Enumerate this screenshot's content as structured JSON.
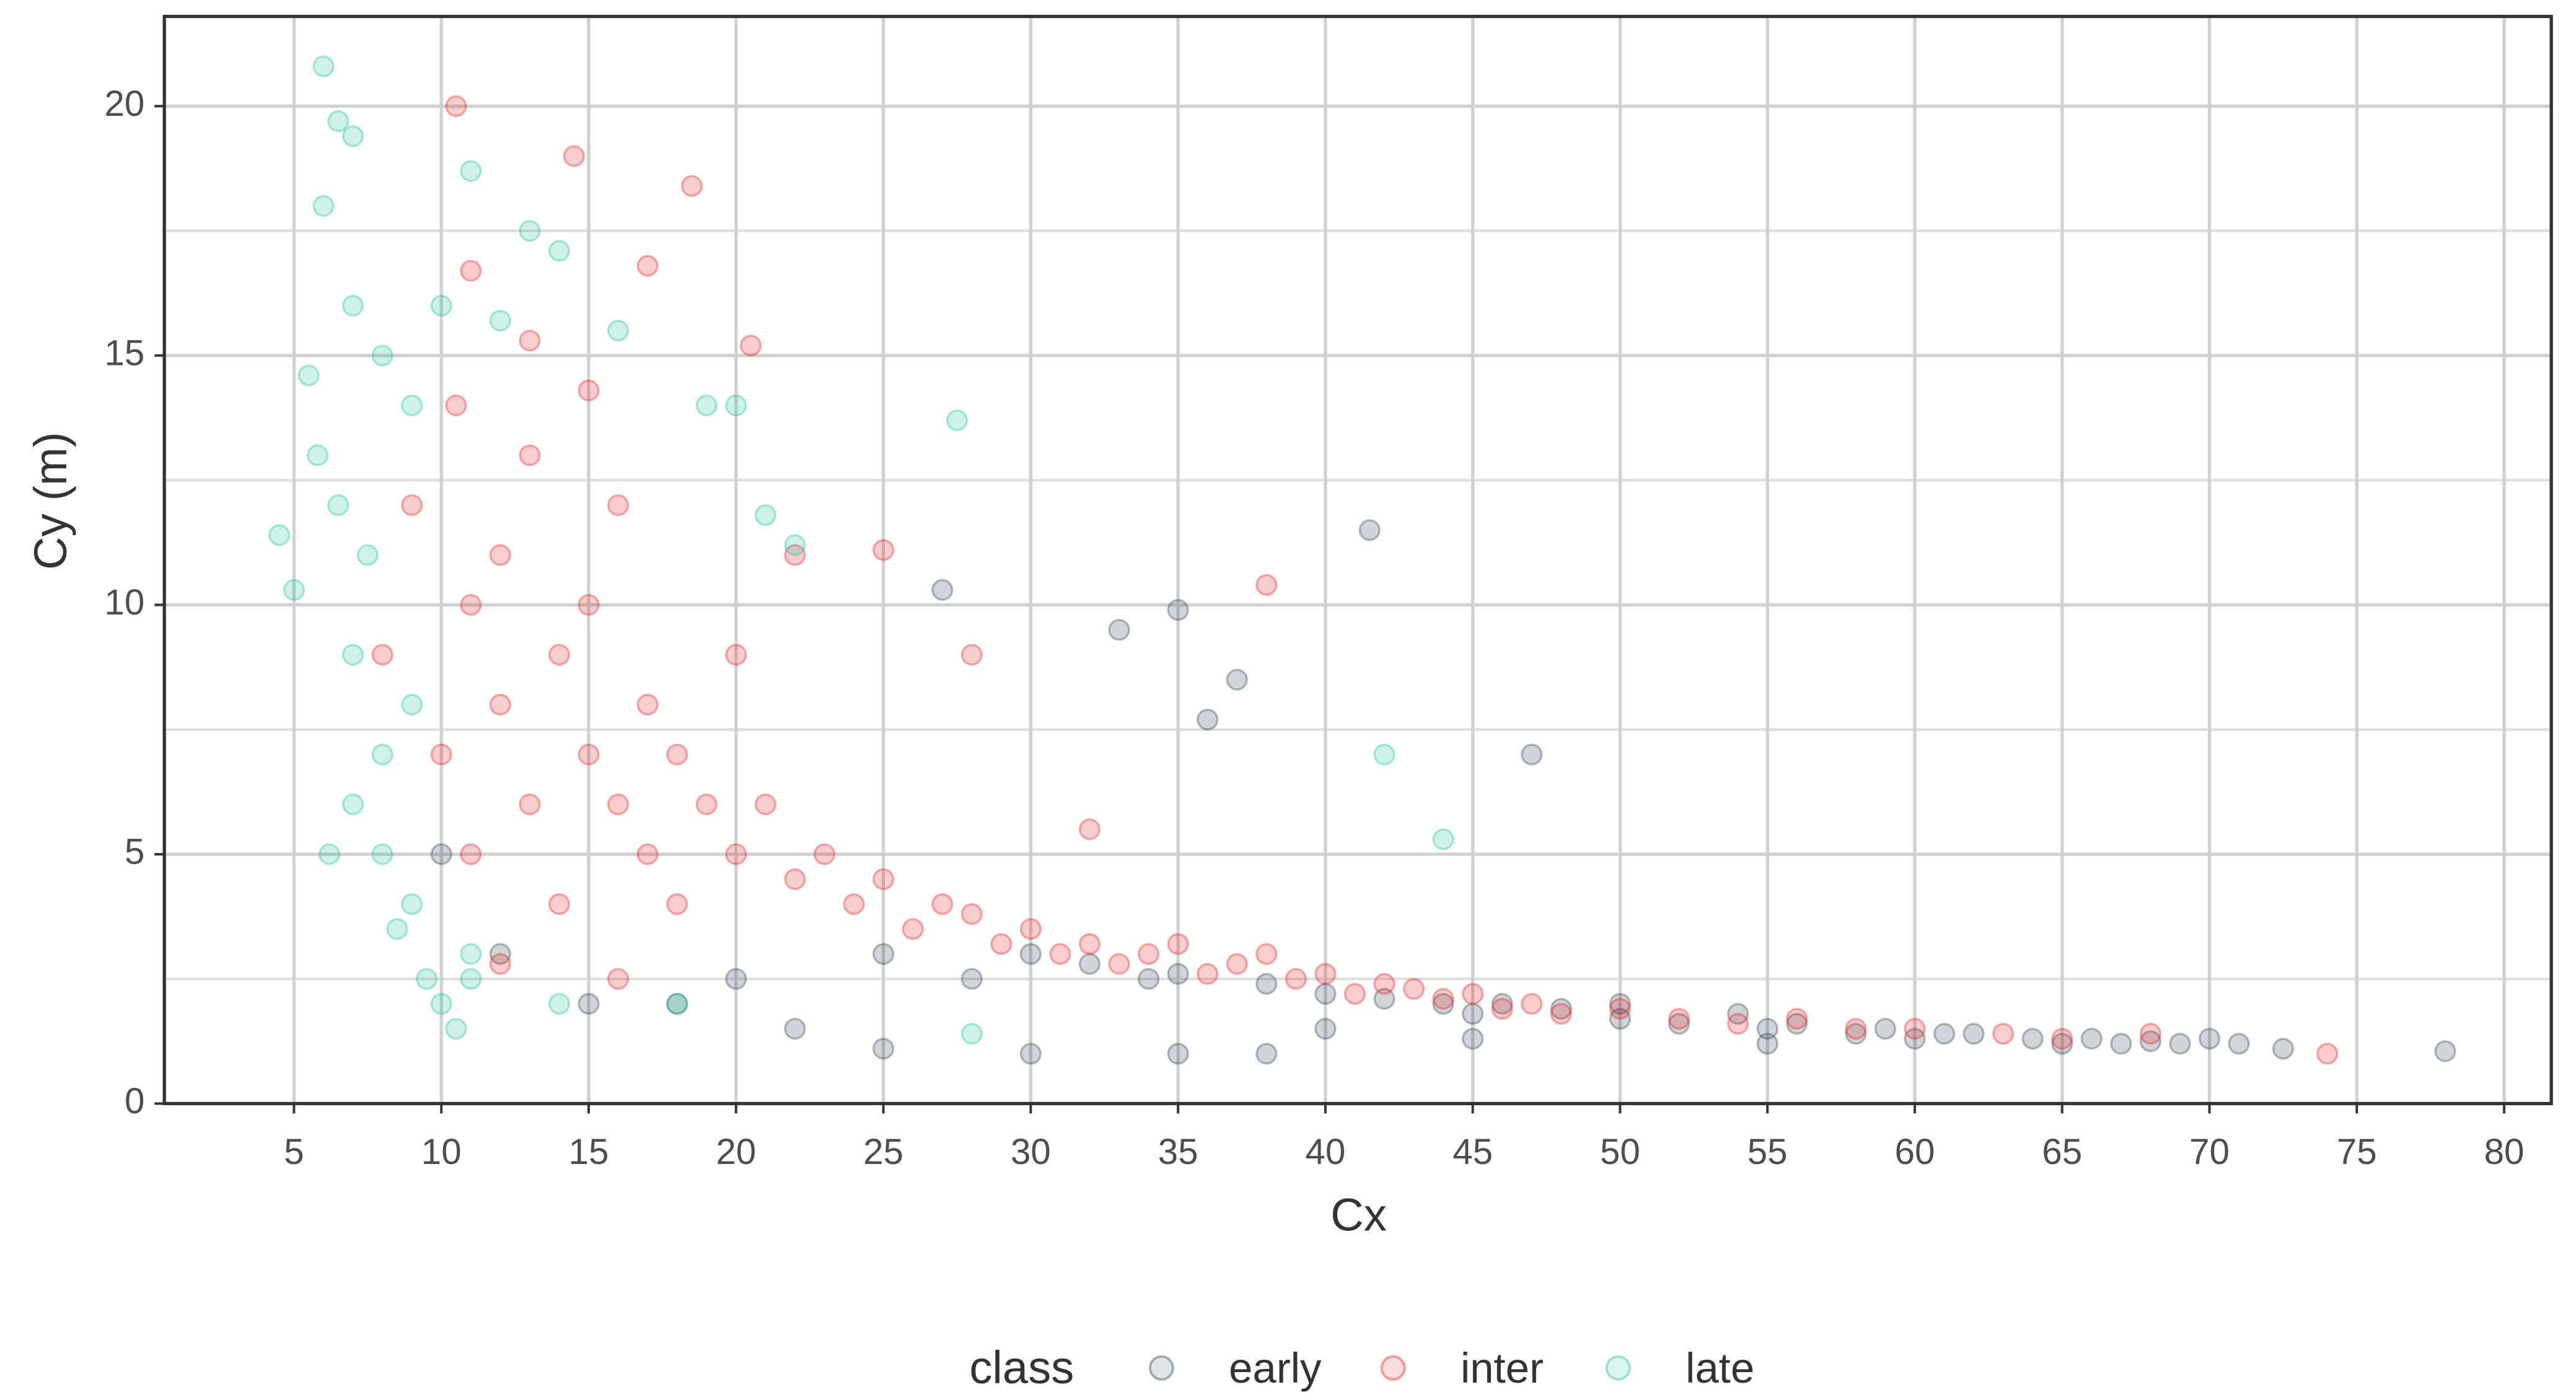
{
  "chart_data": {
    "type": "scatter",
    "x_label": "Cx",
    "y_label": "Cy (m)",
    "legend_title": "class",
    "legend_position": "bottom",
    "grid": true,
    "xlim": [
      0.6,
      81.6
    ],
    "ylim": [
      0,
      21.8
    ],
    "xticks": [
      5,
      10,
      15,
      20,
      25,
      30,
      35,
      40,
      45,
      50,
      55,
      60,
      65,
      70,
      75,
      80
    ],
    "yticks": [
      0,
      5,
      10,
      15,
      20
    ],
    "yminor": [
      2.5,
      7.5,
      12.5,
      17.5
    ],
    "series": [
      {
        "name": "early",
        "color": "#2c3e50",
        "x": [
          10,
          12,
          15,
          18,
          20,
          22,
          25,
          27,
          28,
          30,
          32,
          33,
          34,
          35,
          35,
          36,
          37,
          38,
          38,
          40,
          40,
          41.5,
          42,
          44,
          45,
          46,
          47,
          48,
          50,
          50,
          52,
          54,
          55,
          56,
          58,
          59,
          60,
          61,
          62,
          64,
          65,
          66,
          67,
          68,
          69,
          70,
          71,
          72.5,
          78,
          30,
          45,
          55,
          25,
          35
        ],
        "values": [
          5,
          3,
          2,
          2,
          2.5,
          1.5,
          3,
          10.3,
          2.5,
          3,
          2.8,
          9.5,
          2.5,
          9.9,
          2.6,
          7.7,
          8.5,
          2.4,
          1,
          2.2,
          1.5,
          11.5,
          2.1,
          2,
          1.8,
          2,
          7,
          1.9,
          1.7,
          2,
          1.6,
          1.8,
          1.5,
          1.6,
          1.4,
          1.5,
          1.3,
          1.4,
          1.4,
          1.3,
          1.2,
          1.3,
          1.2,
          1.25,
          1.2,
          1.3,
          1.2,
          1.1,
          1.05,
          1,
          1.3,
          1.2,
          1.1,
          1
        ]
      },
      {
        "name": "inter",
        "color": "#e41a1c",
        "x": [
          8,
          9,
          10,
          10.5,
          11,
          11,
          12,
          12,
          13,
          13,
          14,
          14,
          15,
          15,
          16,
          16,
          17,
          17,
          18,
          18,
          19,
          20,
          20,
          21,
          22,
          23,
          24,
          25,
          26,
          27,
          28,
          29,
          30,
          31,
          32,
          33,
          34,
          35,
          36,
          37,
          38,
          39,
          40,
          41,
          42,
          43,
          44,
          45,
          46,
          47,
          48,
          50,
          52,
          54,
          56,
          58,
          60,
          63,
          65,
          68,
          74,
          10.5,
          14.5,
          18.5,
          20.5,
          38,
          11,
          13,
          15,
          17,
          22,
          25,
          28,
          32,
          16,
          12
        ],
        "values": [
          9,
          12,
          7,
          14,
          10,
          5,
          8,
          11,
          6,
          13,
          9,
          4,
          7,
          10,
          6,
          12,
          5,
          8,
          7,
          4,
          6,
          5,
          9,
          6,
          4.5,
          5,
          4,
          4.5,
          3.5,
          4,
          3.8,
          3.2,
          3.5,
          3,
          3.2,
          2.8,
          3,
          3.2,
          2.6,
          2.8,
          3,
          2.5,
          2.6,
          2.2,
          2.4,
          2.3,
          2.1,
          2.2,
          1.9,
          2,
          1.8,
          1.9,
          1.7,
          1.6,
          1.7,
          1.5,
          1.5,
          1.4,
          1.3,
          1.4,
          1.0,
          20,
          19,
          18.4,
          15.2,
          10.4,
          16.7,
          15.3,
          14.3,
          16.8,
          11,
          11.1,
          9,
          5.5,
          2.5,
          2.8
        ]
      },
      {
        "name": "late",
        "color": "#1abc9c",
        "x": [
          4.5,
          5,
          5.5,
          6,
          6,
          6.5,
          6.5,
          7,
          7,
          7,
          7.5,
          8,
          8,
          8,
          8.5,
          9,
          9,
          9.5,
          10,
          10,
          10.5,
          11,
          11,
          12,
          13,
          14,
          14,
          16,
          18,
          19,
          20,
          21,
          22,
          27.5,
          42,
          44,
          28,
          6.2,
          7,
          5.8,
          9,
          11
        ],
        "values": [
          11.4,
          10.3,
          14.6,
          20.8,
          18,
          19.7,
          12,
          19.4,
          16,
          9,
          11,
          15,
          7,
          5,
          3.5,
          14,
          4,
          2.5,
          2,
          16,
          1.5,
          18.7,
          3,
          15.7,
          17.5,
          17.1,
          2,
          15.5,
          2,
          14,
          14,
          11.8,
          11.2,
          13.7,
          7,
          5.3,
          1.4,
          5,
          6,
          13,
          8,
          2.5
        ]
      }
    ]
  }
}
